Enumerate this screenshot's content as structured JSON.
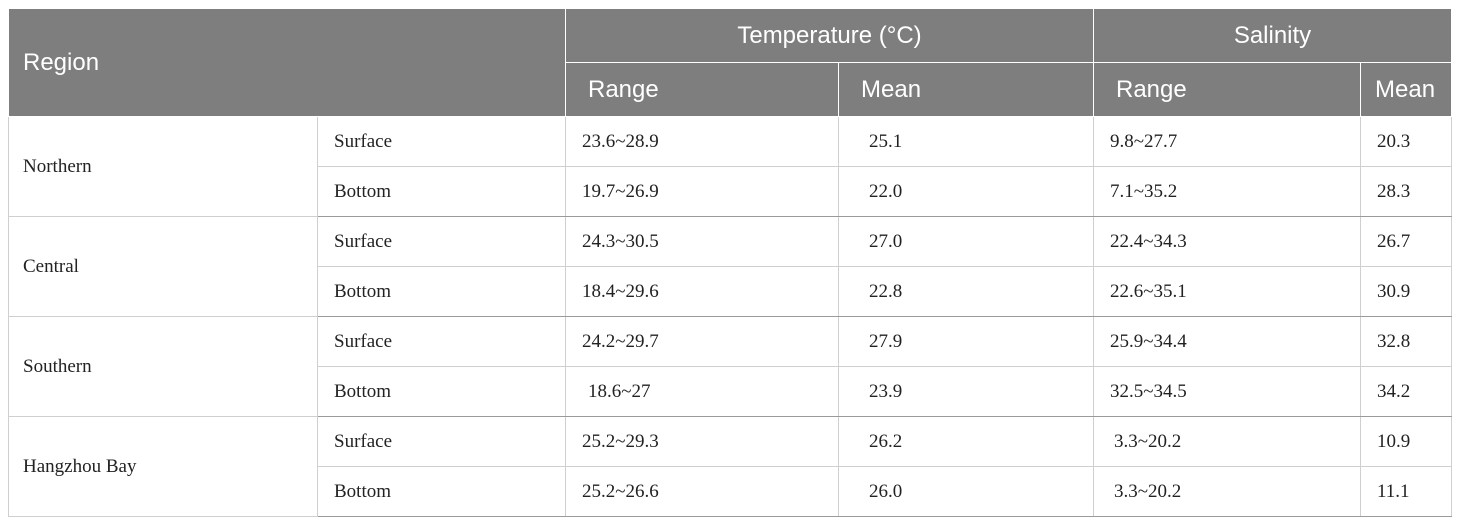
{
  "header": {
    "region": "Region",
    "temperature": "Temperature (°C)",
    "salinity": "Salinity",
    "temp_range": "Range",
    "temp_mean": "Mean",
    "sal_range": "Range",
    "sal_mean": "Mean"
  },
  "rows": [
    {
      "region": "Northern",
      "layers": [
        {
          "layer": "Surface",
          "t_range": "23.6~28.9",
          "t_mean": "25.1",
          "s_range": "9.8~27.7",
          "s_mean": "20.3"
        },
        {
          "layer": "Bottom",
          "t_range": "19.7~26.9",
          "t_mean": "22.0",
          "s_range": "7.1~35.2",
          "s_mean": "28.3"
        }
      ]
    },
    {
      "region": "Central",
      "layers": [
        {
          "layer": "Surface",
          "t_range": "24.3~30.5",
          "t_mean": "27.0",
          "s_range": "22.4~34.3",
          "s_mean": "26.7"
        },
        {
          "layer": "Bottom",
          "t_range": "18.4~29.6",
          "t_mean": "22.8",
          "s_range": "22.6~35.1",
          "s_mean": "30.9"
        }
      ]
    },
    {
      "region": "Southern",
      "layers": [
        {
          "layer": "Surface",
          "t_range": "24.2~29.7",
          "t_mean": "27.9",
          "s_range": "25.9~34.4",
          "s_mean": "32.8"
        },
        {
          "layer": "Bottom",
          "t_range": "18.6~27",
          "t_mean": "23.9",
          "s_range": "32.5~34.5",
          "s_mean": "34.2"
        }
      ]
    },
    {
      "region": "Hangzhou Bay",
      "layers": [
        {
          "layer": "Surface",
          "t_range": "25.2~29.3",
          "t_mean": "26.2",
          "s_range": "3.3~20.2",
          "s_mean": "10.9"
        },
        {
          "layer": "Bottom",
          "t_range": "25.2~26.6",
          "t_mean": "26.0",
          "s_range": "3.3~20.2",
          "s_mean": "11.1"
        }
      ]
    }
  ]
}
